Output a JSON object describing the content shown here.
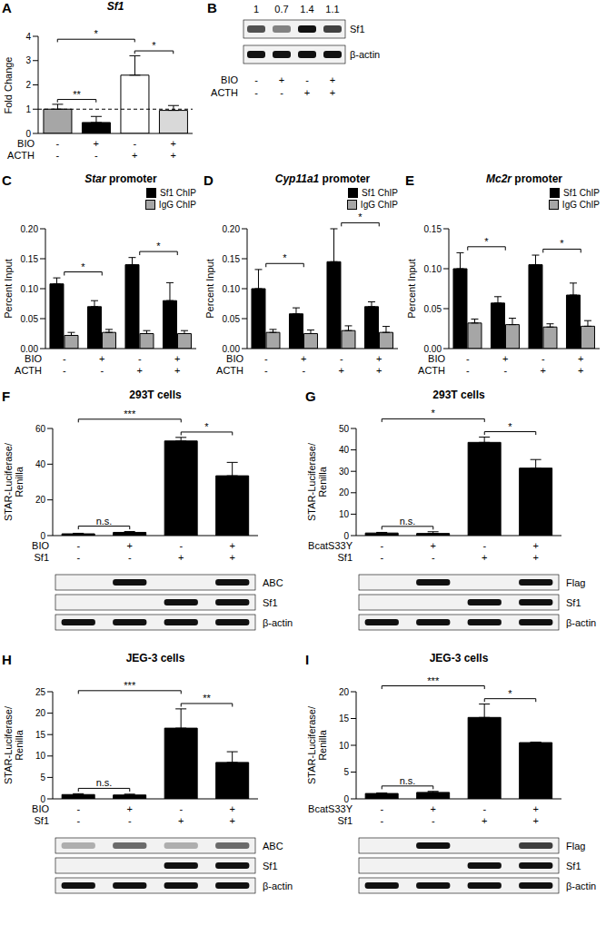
{
  "chart_data": [
    {
      "panel": "A",
      "type": "bar",
      "title": "Sf1",
      "y_label": "Fold Change",
      "categories": [
        null,
        null,
        null,
        null
      ],
      "conditions": [
        {
          "label": "BIO",
          "values": [
            "-",
            "+",
            "-",
            "+"
          ]
        },
        {
          "label": "ACTH",
          "values": [
            "-",
            "-",
            "+",
            "+"
          ]
        }
      ],
      "values": [
        1,
        0.45,
        2.4,
        0.95
      ],
      "errors": [
        0.2,
        0.25,
        0.8,
        0.2
      ],
      "colors": [
        "#a6a6a6",
        "#000000",
        "#ffffff",
        "#d9d9d9"
      ],
      "ylim": [
        0,
        4
      ],
      "yticks": [
        0,
        1,
        2,
        3,
        4
      ],
      "reference_line": 1,
      "significance": [
        {
          "between": [
            0,
            1
          ],
          "label": "**"
        },
        {
          "between": [
            0,
            2
          ],
          "label": "*"
        },
        {
          "between": [
            2,
            3
          ],
          "label": "*"
        }
      ]
    },
    {
      "panel": "C",
      "type": "bar",
      "title": "Star promoter",
      "y_label": "Percent Input",
      "categories": [
        null,
        null,
        null,
        null
      ],
      "conditions": [
        {
          "label": "BIO",
          "values": [
            "-",
            "+",
            "-",
            "+"
          ]
        },
        {
          "label": "ACTH",
          "values": [
            "-",
            "-",
            "+",
            "+"
          ]
        }
      ],
      "series": [
        {
          "name": "Sf1 ChIP",
          "color": "#000000",
          "values": [
            0.108,
            0.07,
            0.14,
            0.08
          ],
          "errors": [
            0.01,
            0.01,
            0.012,
            0.03
          ]
        },
        {
          "name": "IgG ChIP",
          "color": "#a6a6a6",
          "values": [
            0.022,
            0.027,
            0.025,
            0.025
          ],
          "errors": [
            0.005,
            0.005,
            0.005,
            0.005
          ]
        }
      ],
      "ylim": [
        0,
        0.2
      ],
      "yticks": [
        {
          "value": 0,
          "label": "0.00"
        },
        0.05,
        {
          "value": 0.1,
          "label": "0.10"
        },
        0.15,
        {
          "value": 0.2,
          "label": "0.20"
        }
      ],
      "legend": "upper right",
      "significance": [
        {
          "between": [
            0,
            1
          ],
          "label": "*"
        },
        {
          "between": [
            2,
            3
          ],
          "label": "*"
        }
      ]
    },
    {
      "panel": "D",
      "type": "bar",
      "title": "Cyp11a1 promoter",
      "y_label": "Percent Input",
      "categories": [
        null,
        null,
        null,
        null
      ],
      "conditions": [
        {
          "label": "BIO",
          "values": [
            "-",
            "+",
            "-",
            "+"
          ]
        },
        {
          "label": "ACTH",
          "values": [
            "-",
            "-",
            "+",
            "+"
          ]
        }
      ],
      "series": [
        {
          "name": "Sf1 ChIP",
          "color": "#000000",
          "values": [
            0.1,
            0.058,
            0.145,
            0.07
          ],
          "errors": [
            0.032,
            0.01,
            0.055,
            0.008
          ]
        },
        {
          "name": "IgG ChIP",
          "color": "#a6a6a6",
          "values": [
            0.027,
            0.025,
            0.03,
            0.027
          ],
          "errors": [
            0.005,
            0.006,
            0.008,
            0.01
          ]
        }
      ],
      "ylim": [
        0,
        0.2
      ],
      "yticks": [
        {
          "value": 0,
          "label": "0.00"
        },
        0.05,
        {
          "value": 0.1,
          "label": "0.10"
        },
        0.15,
        {
          "value": 0.2,
          "label": "0.20"
        }
      ],
      "legend": "upper right",
      "significance": [
        {
          "between": [
            0,
            1
          ],
          "label": "*"
        },
        {
          "between": [
            2,
            3
          ],
          "label": "*"
        }
      ]
    },
    {
      "panel": "E",
      "type": "bar",
      "title": "Mc2r promoter",
      "y_label": "Percent Input",
      "categories": [
        null,
        null,
        null,
        null
      ],
      "conditions": [
        {
          "label": "BIO",
          "values": [
            "-",
            "+",
            "-",
            "+"
          ]
        },
        {
          "label": "ACTH",
          "values": [
            "-",
            "-",
            "+",
            "+"
          ]
        }
      ],
      "series": [
        {
          "name": "Sf1 ChIP",
          "color": "#000000",
          "values": [
            0.1,
            0.057,
            0.105,
            0.067
          ],
          "errors": [
            0.02,
            0.008,
            0.012,
            0.015
          ]
        },
        {
          "name": "IgG ChIP",
          "color": "#a6a6a6",
          "values": [
            0.032,
            0.03,
            0.027,
            0.028
          ],
          "errors": [
            0.005,
            0.008,
            0.004,
            0.007
          ]
        }
      ],
      "ylim": [
        0,
        0.15
      ],
      "yticks": [
        {
          "value": 0,
          "label": "0.00"
        },
        0.05,
        {
          "value": 0.1,
          "label": "0.10"
        },
        0.15
      ],
      "legend": "upper right",
      "significance": [
        {
          "between": [
            0,
            1
          ],
          "label": "*"
        },
        {
          "between": [
            2,
            3
          ],
          "label": "*"
        }
      ]
    },
    {
      "panel": "F",
      "type": "bar",
      "title": "293T cells",
      "y_label": "STAR-Luciferase/ Renilla",
      "categories": [
        null,
        null,
        null,
        null
      ],
      "conditions": [
        {
          "label": "BIO",
          "values": [
            "-",
            "+",
            "-",
            "+"
          ]
        },
        {
          "label": "Sf1",
          "values": [
            "-",
            "-",
            "+",
            "+"
          ]
        }
      ],
      "values": [
        1,
        1.8,
        53,
        33.5
      ],
      "errors": [
        0.3,
        0.5,
        2,
        7.5
      ],
      "color": "#000000",
      "ylim": [
        0,
        60
      ],
      "yticks": [
        0,
        20,
        40,
        60
      ],
      "significance": [
        {
          "between": [
            0,
            1
          ],
          "label": "n.s."
        },
        {
          "between": [
            0,
            2
          ],
          "label": "***"
        },
        {
          "between": [
            2,
            3
          ],
          "label": "*"
        }
      ],
      "blot_rows": [
        "ABC",
        "Sf1",
        "β-actin"
      ]
    },
    {
      "panel": "G",
      "type": "bar",
      "title": "293T cells",
      "y_label": "STAR-Luciferase/ Renilla",
      "categories": [
        null,
        null,
        null,
        null
      ],
      "conditions": [
        {
          "label": "BcatS33Y",
          "values": [
            "-",
            "+",
            "-",
            "+"
          ]
        },
        {
          "label": "Sf1",
          "values": [
            "-",
            "-",
            "+",
            "+"
          ]
        }
      ],
      "values": [
        1.2,
        1,
        43.5,
        31.5
      ],
      "errors": [
        0.3,
        0.8,
        2.5,
        4
      ],
      "color": "#000000",
      "ylim": [
        0,
        50
      ],
      "yticks": [
        0,
        10,
        20,
        30,
        40,
        50
      ],
      "significance": [
        {
          "between": [
            0,
            1
          ],
          "label": "n.s."
        },
        {
          "between": [
            0,
            2
          ],
          "label": "*"
        },
        {
          "between": [
            2,
            3
          ],
          "label": "*"
        }
      ],
      "blot_rows": [
        "Flag",
        "Sf1",
        "β-actin"
      ]
    },
    {
      "panel": "H",
      "type": "bar",
      "title": "JEG-3 cells",
      "y_label": "STAR-Luciferase/ Renilla",
      "categories": [
        null,
        null,
        null,
        null
      ],
      "conditions": [
        {
          "label": "BIO",
          "values": [
            "-",
            "+",
            "-",
            "+"
          ]
        },
        {
          "label": "Sf1",
          "values": [
            "-",
            "-",
            "+",
            "+"
          ]
        }
      ],
      "values": [
        1,
        0.9,
        16.5,
        8.5
      ],
      "errors": [
        0.2,
        0.2,
        4.5,
        2.5
      ],
      "color": "#000000",
      "ylim": [
        0,
        25
      ],
      "yticks": [
        0,
        5,
        10,
        15,
        20,
        25
      ],
      "significance": [
        {
          "between": [
            0,
            1
          ],
          "label": "n.s."
        },
        {
          "between": [
            0,
            2
          ],
          "label": "***"
        },
        {
          "between": [
            2,
            3
          ],
          "label": "**"
        }
      ],
      "blot_rows": [
        "ABC",
        "Sf1",
        "β-actin"
      ]
    },
    {
      "panel": "I",
      "type": "bar",
      "title": "JEG-3 cells",
      "y_label": "STAR-Luciferase/ Renilla",
      "categories": [
        null,
        null,
        null,
        null
      ],
      "conditions": [
        {
          "label": "BcatS33Y",
          "values": [
            "-",
            "+",
            "-",
            "+"
          ]
        },
        {
          "label": "Sf1",
          "values": [
            "-",
            "-",
            "+",
            "+"
          ]
        }
      ],
      "values": [
        1,
        1.2,
        15.2,
        10.5
      ],
      "errors": [
        0.1,
        0.2,
        2.5,
        0.1
      ],
      "color": "#000000",
      "ylim": [
        0,
        20
      ],
      "yticks": [
        0,
        5,
        10,
        15,
        20
      ],
      "significance": [
        {
          "between": [
            0,
            1
          ],
          "label": "n.s."
        },
        {
          "between": [
            0,
            2
          ],
          "label": "***"
        },
        {
          "between": [
            2,
            3
          ],
          "label": "*"
        }
      ],
      "blot_rows": [
        "Flag",
        "Sf1",
        "β-actin"
      ]
    }
  ],
  "blots": [
    {
      "panel": "B",
      "quantification": [
        1,
        0.7,
        1.4,
        1.1
      ],
      "rows": [
        "Sf1",
        "β-actin"
      ],
      "conditions": [
        {
          "label": "BIO",
          "values": [
            "-",
            "+",
            "-",
            "+"
          ]
        },
        {
          "label": "ACTH",
          "values": [
            "-",
            "-",
            "+",
            "+"
          ]
        }
      ]
    }
  ]
}
